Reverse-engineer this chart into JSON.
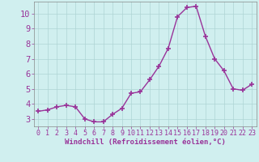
{
  "x": [
    0,
    1,
    2,
    3,
    4,
    5,
    6,
    7,
    8,
    9,
    10,
    11,
    12,
    13,
    14,
    15,
    16,
    17,
    18,
    19,
    20,
    21,
    22,
    23
  ],
  "y": [
    3.5,
    3.6,
    3.8,
    3.9,
    3.8,
    3.0,
    2.8,
    2.8,
    3.3,
    3.7,
    4.7,
    4.8,
    5.6,
    6.5,
    7.7,
    9.8,
    10.4,
    10.5,
    8.5,
    7.0,
    6.2,
    5.0,
    4.9,
    5.3
  ],
  "line_color": "#993399",
  "marker": "+",
  "marker_size": 4,
  "marker_lw": 1.2,
  "line_width": 1.0,
  "bg_color": "#d0efef",
  "grid_color": "#aed4d4",
  "axis_color": "#666666",
  "tick_color": "#993399",
  "xlabel": "Windchill (Refroidissement éolien,°C)",
  "ylabel": "",
  "xlim": [
    -0.5,
    23.5
  ],
  "ylim": [
    2.5,
    10.8
  ],
  "yticks": [
    3,
    4,
    5,
    6,
    7,
    8,
    9,
    10
  ],
  "xticks": [
    0,
    1,
    2,
    3,
    4,
    5,
    6,
    7,
    8,
    9,
    10,
    11,
    12,
    13,
    14,
    15,
    16,
    17,
    18,
    19,
    20,
    21,
    22,
    23
  ],
  "tick_font_size": 6.0,
  "label_font_size": 6.5
}
